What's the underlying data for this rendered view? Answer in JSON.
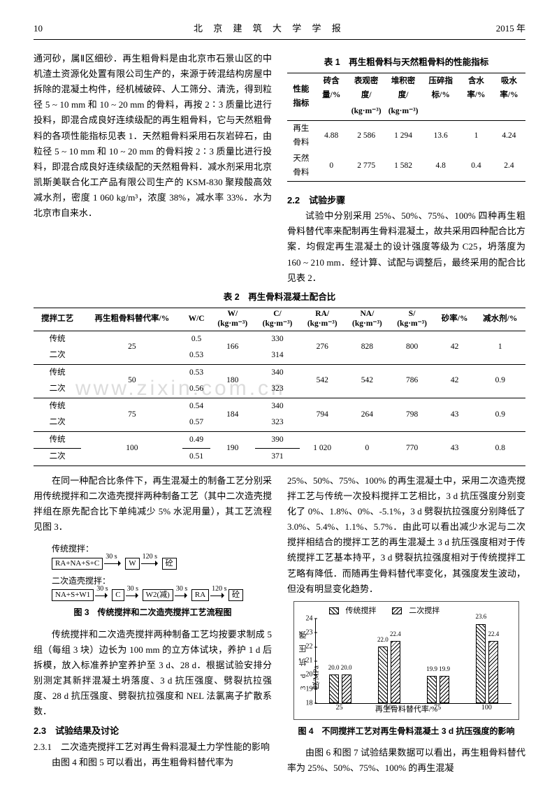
{
  "header": {
    "page": "10",
    "journal": "北 京 建 筑 大 学 学 报",
    "year": "2015 年"
  },
  "leftPara1": "通河砂，属Ⅱ区细砂．再生粗骨料是由北京市石景山区的中机渣土资源化处置有限公司生产的，来源于砖混结构房屋中拆除的混凝土构件，经机械破碎、人工筛分、清洗，得到粒径 5 ~ 10 mm 和 10 ~ 20 mm 的骨料，再按 2∶3 质量比进行投料，即混合成良好连续级配的再生粗骨料，它与天然粗骨料的各项性能指标见表 1．天然粗骨料采用石灰岩碎石，由粒径 5 ~ 10 mm 和 10 ~ 20 mm 的骨料按 2∶3 质量比进行投料，即混合成良好连续级配的天然粗骨料．减水剂采用北京凯斯美联合化工产品有限公司生产的 KSM-830 聚羧酸高效减水剂，密度 1 060 kg/m³，浓度 38%，减水率 33%．水为北京市自来水．",
  "table1": {
    "title": "表 1　再生粗骨料与天然粗骨料的性能指标",
    "headers1": [
      "性能指标",
      "砖含量/%",
      "表观密度/",
      "堆积密度/",
      "压碎指标/%",
      "含水率/%",
      "吸水率/%"
    ],
    "headers2": [
      "",
      "",
      "(kg·m⁻³)",
      "(kg·m⁻³)",
      "",
      "",
      ""
    ],
    "rows": [
      [
        "再生骨料",
        "4.88",
        "2 586",
        "1 294",
        "13.6",
        "1",
        "4.24"
      ],
      [
        "天然骨料",
        "0",
        "2 775",
        "1 582",
        "4.8",
        "0.4",
        "2.4"
      ]
    ]
  },
  "sec22": {
    "head": "2.2　试验步骤",
    "text": "试验中分别采用 25%、50%、75%、100% 四种再生粗骨料替代率来配制再生骨料混凝土，故共采用四种配合比方案．均假定再生混凝土的设计强度等级为 C25，坍落度为 160 ~ 210 mm．经计算、试配与调整后，最终采用的配合比见表 2．"
  },
  "table2": {
    "title": "表 2　再生骨料混凝土配合比",
    "headers": [
      "搅拌工艺",
      "再生粗骨料替代率/%",
      "W/C",
      "W/ (kg·m⁻³)",
      "C/ (kg·m⁻³)",
      "RA/ (kg·m⁻³)",
      "NA/ (kg·m⁻³)",
      "S/ (kg·m⁻³)",
      "砂率/%",
      "减水剂/%"
    ],
    "groups": [
      {
        "rate": "25",
        "rows": [
          [
            "传统",
            "0.5",
            "166",
            "330",
            "276",
            "828",
            "800",
            "42",
            "1"
          ],
          [
            "二次",
            "0.53",
            "",
            "314",
            "",
            "",
            "",
            "",
            ""
          ]
        ]
      },
      {
        "rate": "50",
        "rows": [
          [
            "传统",
            "0.53",
            "180",
            "340",
            "542",
            "542",
            "786",
            "42",
            "0.9"
          ],
          [
            "二次",
            "0.56",
            "",
            "323",
            "",
            "",
            "",
            "",
            ""
          ]
        ]
      },
      {
        "rate": "75",
        "rows": [
          [
            "传统",
            "0.54",
            "184",
            "340",
            "794",
            "264",
            "798",
            "43",
            "0.9"
          ],
          [
            "二次",
            "0.57",
            "",
            "323",
            "",
            "",
            "",
            "",
            ""
          ]
        ]
      },
      {
        "rate": "100",
        "rows": [
          [
            "传统",
            "0.49",
            "190",
            "390",
            "1 020",
            "0",
            "770",
            "43",
            "0.8"
          ],
          [
            "二次",
            "0.51",
            "",
            "371",
            "",
            "",
            "",
            "",
            ""
          ]
        ]
      }
    ]
  },
  "watermark": "www.zixin.com.cn",
  "paraAfterT2Left": "在同一种配合比条件下，再生混凝土的制备工艺分别采用传统搅拌和二次造壳搅拌两种制备工艺（其中二次造壳搅拌组在原先配合比下单纯减少 5% 水泥用量），其工艺流程见图 3．",
  "flow": {
    "label1": "传统搅拌：",
    "line1": {
      "box1": "RA+NA+S+C",
      "a1": "30 s",
      "box2": "W",
      "a2": "120 s",
      "box3": "砼"
    },
    "label2": "二次造壳搅拌：",
    "line2": {
      "box1": "NA+S+W1",
      "a1": "30 s",
      "box2": "C",
      "a2": "30 s",
      "box3": "W2(减)",
      "a3": "30 s",
      "box4": "RA",
      "a4": "120 s",
      "box5": "砼"
    },
    "caption": "图 3　传统搅拌和二次造壳搅拌工艺流程图"
  },
  "paraBeforeChart": "传统搅拌和二次造壳搅拌两种制备工艺均按要求制成 5 组（每组 3 块）边长为 100 mm 的立方体试块，养护 1 d 后拆模，放入标准养护室养护至 3 d、28 d．根据试验安排分别测定其新拌混凝土坍落度、3 d 抗压强度、劈裂抗拉强度、28 d 抗压强度、劈裂抗拉强度和 NEL 法氯离子扩散系数．",
  "sec23": "2.3　试验结果及讨论",
  "sec231": "2.3.1　二次造壳搅拌工艺对再生骨料混凝土力学性能的影响",
  "left_last": "由图 4 和图 5 可以看出，再生粗骨料替代率为",
  "paraAfterT2Right": "25%、50%、75%、100% 的再生混凝土中，采用二次造壳搅拌工艺与传统一次投料搅拌工艺相比，3 d 抗压强度分别变化了 0%、1.8%、0%、-5.1%，3 d 劈裂抗拉强度分别降低了 3.0%、5.4%、1.1%、5.7%．由此可以看出减少水泥与二次搅拌相结合的搅拌工艺的再生混凝土 3 d 抗压强度相对于传统搅拌工艺基本持平，3 d 劈裂抗拉强度相对于传统搅拌工艺略有降低．而随再生骨料替代率变化，其强度发生波动，但没有明显变化趋势．",
  "chart": {
    "legend": [
      "传统搅拌",
      "二次搅拌"
    ],
    "ymin": 18,
    "ymax": 24,
    "ystep": 1,
    "ylabel": "3 d 抗压强度/MPa",
    "xlabel": "再生骨料替代率/%",
    "categories": [
      "25",
      "50",
      "75",
      "100"
    ],
    "series": [
      {
        "name": "传统搅拌",
        "values": [
          20.0,
          22.0,
          19.9,
          23.6
        ],
        "labels": [
          "20.0",
          "22.0",
          "19.9",
          "23.6"
        ],
        "hatch": "hatch"
      },
      {
        "name": "二次搅拌",
        "values": [
          20.0,
          22.4,
          19.9,
          22.4
        ],
        "labels": [
          "20.0",
          "22.4",
          "19.9",
          "22.4"
        ],
        "hatch": "hatch2"
      }
    ],
    "caption": "图 4　不同搅拌工艺对再生骨料混凝土 3 d 抗压强度的影响"
  },
  "right_last": "由图 6 和图 7 试验结果数据可以看出，再生粗骨料替代率为 25%、50%、75%、100% 的再生混凝"
}
